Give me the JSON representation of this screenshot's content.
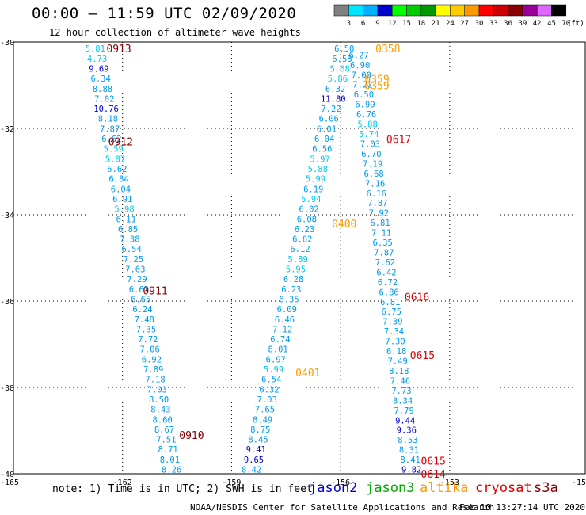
{
  "header": {
    "title": "00:00 – 11:59 UTC 02/09/2020",
    "subtitle": "12 hour collection of altimeter wave heights"
  },
  "footer": {
    "note": "note: 1) Time is in UTC; 2) SWH is in feet",
    "satellites": [
      {
        "name": "jason2",
        "color": "#0000cc"
      },
      {
        "name": "jason3",
        "color": "#00aa00"
      },
      {
        "name": "altika",
        "color": "#ff9900"
      },
      {
        "name": "cryosat",
        "color": "#dd0000"
      },
      {
        "name": "s3a",
        "color": "#880000"
      }
    ],
    "credit": "NOAA/NESDIS Center for Satellite Applications and Research",
    "timestamp": "Feb 10 13:27:14 UTC 2020"
  },
  "colorbar": {
    "unit": "(ft)",
    "ticks": [
      "3",
      "6",
      "9",
      "12",
      "15",
      "18",
      "21",
      "24",
      "27",
      "30",
      "33",
      "36",
      "39",
      "42",
      "45",
      "70"
    ],
    "colors": [
      "#808080",
      "#00e5ff",
      "#00b0ff",
      "#0000cc",
      "#00ff00",
      "#00cc00",
      "#009900",
      "#ffff00",
      "#ffcc00",
      "#ff9900",
      "#ff0000",
      "#cc0000",
      "#880000",
      "#990099",
      "#dd66ff",
      "#000000"
    ]
  },
  "chart_data": {
    "type": "scatter",
    "x_ticks": [
      "-165",
      "-162",
      "-159",
      "-156",
      "-153",
      "-15"
    ],
    "y_ticks": [
      "-30",
      "-32",
      "-34",
      "-36",
      "-38",
      "-40"
    ],
    "xlim": [
      -165,
      -153.2
    ],
    "ylim": [
      -40,
      -30
    ],
    "time_labels": [
      {
        "text": "0913",
        "lon": -162.1,
        "lat": -30.15,
        "color": "#880000"
      },
      {
        "text": "0912",
        "lon": -162.05,
        "lat": -32.3,
        "color": "#880000"
      },
      {
        "text": "0911",
        "lon": -161.1,
        "lat": -35.75,
        "color": "#880000"
      },
      {
        "text": "0910",
        "lon": -160.1,
        "lat": -39.1,
        "color": "#880000"
      },
      {
        "text": "0358",
        "lon": -154.7,
        "lat": -30.15,
        "color": "#ff9900"
      },
      {
        "text": "0359",
        "lon": -155.0,
        "lat": -30.85,
        "color": "#ff9900"
      },
      {
        "text": "0359",
        "lon": -155.0,
        "lat": -31.0,
        "color": "#ff9900"
      },
      {
        "text": "0400",
        "lon": -155.9,
        "lat": -34.2,
        "color": "#ff9900"
      },
      {
        "text": "0401",
        "lon": -156.9,
        "lat": -37.65,
        "color": "#ff9900"
      },
      {
        "text": "0617",
        "lon": -154.4,
        "lat": -32.25,
        "color": "#dd0000"
      },
      {
        "text": "0616",
        "lon": -153.9,
        "lat": -35.9,
        "color": "#dd0000"
      },
      {
        "text": "0615",
        "lon": -153.75,
        "lat": -37.25,
        "color": "#dd0000"
      },
      {
        "text": "0615",
        "lon": -153.45,
        "lat": -39.7,
        "color": "#dd0000"
      },
      {
        "text": "0614",
        "lon": -153.45,
        "lat": -40.0,
        "color": "#dd0000"
      }
    ],
    "series": [
      {
        "name": "s3a",
        "lon_start": -162.75,
        "lat_start": -30.15,
        "lon_end": -160.65,
        "lat_end": -39.9,
        "values": [
          "5.81",
          "4.73",
          "9.69",
          "6.34",
          "8.88",
          "7.02",
          "10.76",
          "8.18",
          "7.87",
          "6.62",
          "5.59",
          "5.87",
          "6.62",
          "6.84",
          "6.04",
          "6.91",
          "5.98",
          "6.11",
          "6.85",
          "7.38",
          "6.54",
          "7.25",
          "7.63",
          "7.29",
          "6.63",
          "6.65",
          "6.24",
          "7.48",
          "7.35",
          "7.72",
          "7.06",
          "6.92",
          "7.89",
          "7.18",
          "7.03",
          "8.50",
          "8.43",
          "8.60",
          "8.67",
          "7.51",
          "8.71",
          "8.01",
          "8.26"
        ]
      },
      {
        "name": "altika",
        "lon_start": -155.9,
        "lat_start": -30.15,
        "lon_end": -158.45,
        "lat_end": -39.9,
        "values": [
          "6.50",
          "6.58",
          "5.68",
          "5.86",
          "6.32",
          "11.80",
          "7.22",
          "6.06",
          "6.01",
          "6.04",
          "6.56",
          "5.97",
          "5.88",
          "5.99",
          "6.19",
          "5.94",
          "6.02",
          "6.08",
          "6.23",
          "6.62",
          "6.12",
          "5.89",
          "5.95",
          "6.28",
          "6.23",
          "6.35",
          "6.09",
          "6.46",
          "7.12",
          "6.74",
          "8.01",
          "6.97",
          "5.99",
          "6.54",
          "6.32",
          "7.03",
          "7.65",
          "8.49",
          "8.75",
          "8.45",
          "9.41",
          "9.65",
          "8.42"
        ]
      },
      {
        "name": "cryosat",
        "lon_start": -155.5,
        "lat_start": -30.3,
        "lon_end": -154.05,
        "lat_end": -39.9,
        "values": [
          "6.27",
          "6.90",
          "7.00",
          "7.22",
          "6.50",
          "6.99",
          "6.76",
          "5.88",
          "5.74",
          "7.03",
          "6.70",
          "7.19",
          "6.68",
          "7.16",
          "6.16",
          "7.87",
          "7.92",
          "6.81",
          "7.11",
          "6.35",
          "7.87",
          "7.62",
          "6.42",
          "6.72",
          "6.86",
          "6.81",
          "6.75",
          "7.39",
          "7.34",
          "7.30",
          "6.18",
          "7.49",
          "8.18",
          "7.46",
          "7.73",
          "8.34",
          "7.79",
          "9.44",
          "9.36",
          "8.53",
          "8.31",
          "8.41",
          "9.82"
        ]
      }
    ]
  }
}
